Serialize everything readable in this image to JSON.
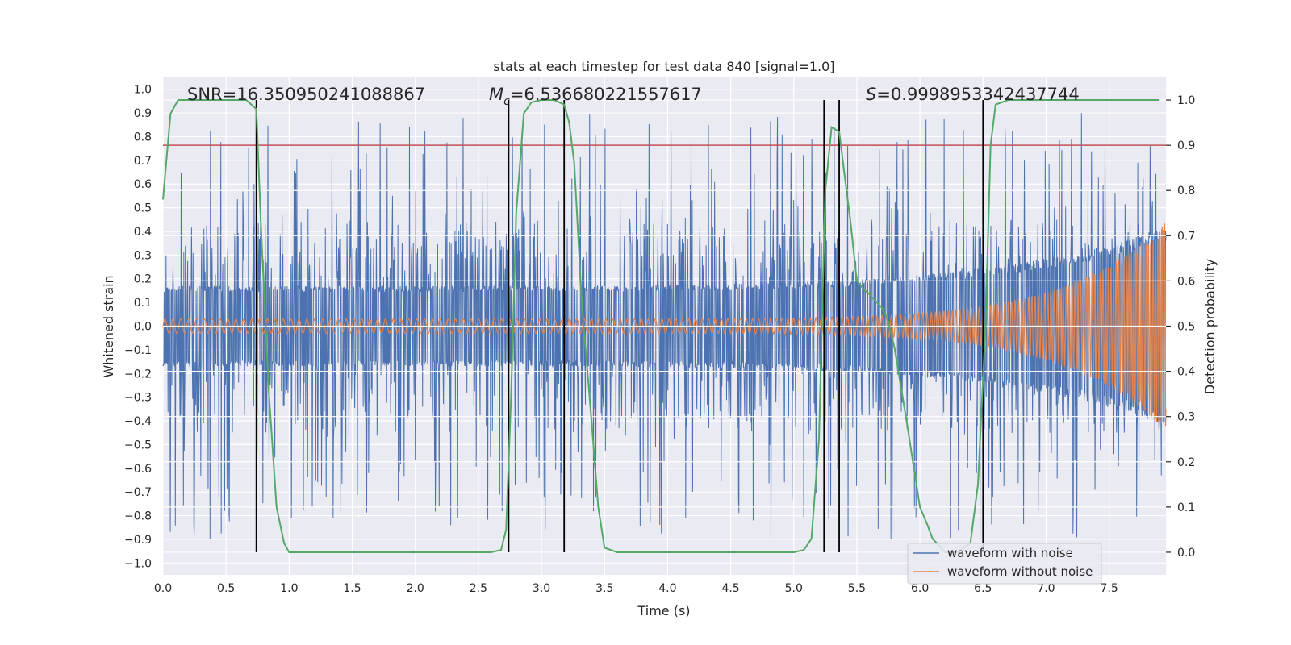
{
  "chart_data": {
    "type": "line",
    "title": "stats at each timestep for test data 840 [signal=1.0]",
    "xlabel": "Time (s)",
    "ylabel": "Whitened strain",
    "y2label": "Detection probability",
    "xlim": [
      0,
      7.95
    ],
    "ylim": [
      -1.05,
      1.05
    ],
    "y2lim": [
      -0.05,
      1.05
    ],
    "xticks": [
      "0.0",
      "0.5",
      "1.0",
      "1.5",
      "2.0",
      "2.5",
      "3.0",
      "3.5",
      "4.0",
      "4.5",
      "5.0",
      "5.5",
      "6.0",
      "6.5",
      "7.0",
      "7.5"
    ],
    "yticks": [
      "1.0",
      "0.9",
      "0.8",
      "0.7",
      "0.6",
      "0.5",
      "0.4",
      "0.3",
      "0.2",
      "0.1",
      "0.0",
      "−0.1",
      "−0.2",
      "−0.3",
      "−0.4",
      "−0.5",
      "−0.6",
      "−0.7",
      "−0.8",
      "−0.9",
      "−1.0"
    ],
    "y2ticks": [
      "1.0",
      "0.9",
      "0.8",
      "0.7",
      "0.6",
      "0.5",
      "0.4",
      "0.3",
      "0.2",
      "0.1",
      "0.0"
    ],
    "annotations": {
      "snr": "SNR=16.350950241088867",
      "mc_symbol": "M",
      "mc_sub": "c",
      "mc_value": "=6.536680221557617",
      "s_symbol": "S",
      "s_value": "=0.9998953342437744"
    },
    "legend": {
      "placement": "lower-right",
      "items": [
        "waveform with noise",
        "waveform without noise"
      ]
    },
    "threshold_probability": 0.9,
    "segment_boundaries_s": [
      0.74,
      2.74,
      3.18,
      5.24,
      5.36,
      6.5
    ],
    "probability_series": {
      "name": "detection probability",
      "t": [
        0.0,
        0.06,
        0.12,
        0.3,
        0.5,
        0.66,
        0.74,
        0.78,
        0.84,
        0.9,
        0.96,
        1.0,
        1.5,
        2.0,
        2.5,
        2.6,
        2.68,
        2.72,
        2.76,
        2.8,
        2.86,
        2.92,
        3.0,
        3.1,
        3.18,
        3.22,
        3.26,
        3.32,
        3.4,
        3.45,
        3.5,
        3.6,
        4.0,
        4.5,
        5.0,
        5.08,
        5.14,
        5.2,
        5.25,
        5.3,
        5.36,
        5.4,
        5.45,
        5.5,
        5.56,
        5.6,
        5.7,
        5.75,
        5.8,
        5.9,
        6.0,
        6.06,
        6.1,
        6.2,
        6.3,
        6.4,
        6.46,
        6.52,
        6.56,
        6.6,
        6.7,
        7.0,
        7.5,
        7.9
      ],
      "p": [
        0.78,
        0.97,
        1.0,
        1.0,
        1.0,
        1.0,
        0.98,
        0.7,
        0.35,
        0.1,
        0.02,
        0.0,
        0.0,
        0.0,
        0.0,
        0.0,
        0.005,
        0.05,
        0.35,
        0.75,
        0.97,
        0.995,
        1.0,
        1.0,
        0.99,
        0.95,
        0.86,
        0.55,
        0.28,
        0.1,
        0.01,
        0.0,
        0.0,
        0.0,
        0.0,
        0.005,
        0.03,
        0.25,
        0.8,
        0.94,
        0.93,
        0.84,
        0.73,
        0.6,
        0.58,
        0.57,
        0.54,
        0.51,
        0.45,
        0.28,
        0.1,
        0.06,
        0.03,
        0.0,
        0.0,
        0.02,
        0.15,
        0.5,
        0.9,
        0.99,
        1.0,
        1.0,
        1.0,
        1.0
      ]
    },
    "noisy_series": {
      "name": "waveform with noise",
      "color": "#4c72b0",
      "envelope_base": 0.17,
      "envelope_end": 0.42
    },
    "clean_series": {
      "name": "waveform without noise",
      "color": "#dd8452",
      "amplitude_start": 0.03,
      "amplitude_end": 0.44
    },
    "colors": {
      "background": "#eaeaf2",
      "grid": "#ffffff",
      "probability": "#55a868",
      "threshold": "#c44e52",
      "boundary": "#000000"
    },
    "grid": true
  }
}
